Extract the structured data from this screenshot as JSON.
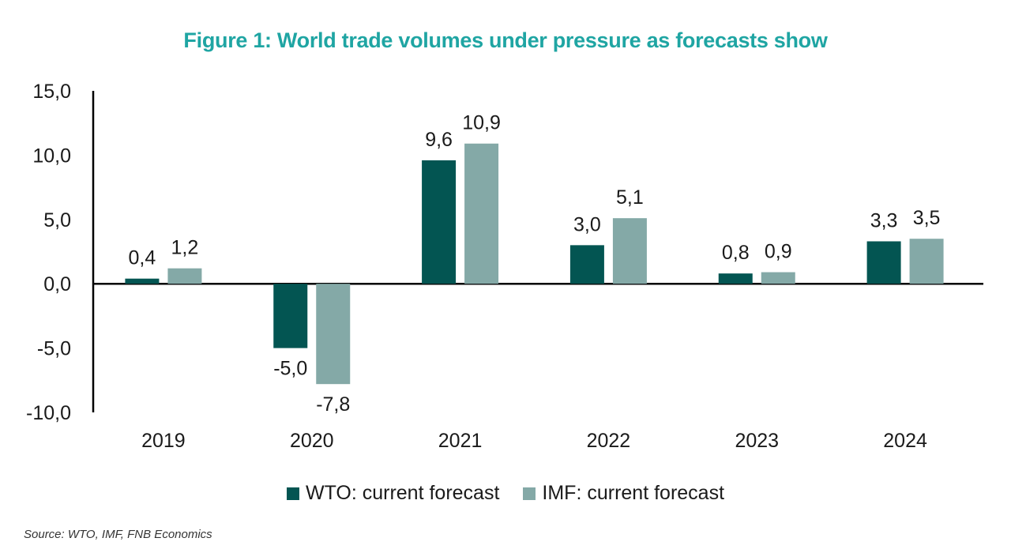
{
  "chart_data": {
    "type": "bar",
    "title": "Figure 1: World trade volumes under pressure as forecasts show",
    "categories": [
      "2019",
      "2020",
      "2021",
      "2022",
      "2023",
      "2024"
    ],
    "series": [
      {
        "name": "WTO: current forecast",
        "color": "#035552",
        "values": [
          0.4,
          -5.0,
          9.6,
          3.0,
          0.8,
          3.3
        ],
        "labels": [
          "0,4",
          "-5,0",
          "9,6",
          "3,0",
          "0,8",
          "3,3"
        ]
      },
      {
        "name": "IMF: current forecast",
        "color": "#84a9a7",
        "values": [
          1.2,
          -7.8,
          10.9,
          5.1,
          0.9,
          3.5
        ],
        "labels": [
          "1,2",
          "-7,8",
          "10,9",
          "5,1",
          "0,9",
          "3,5"
        ]
      }
    ],
    "ylim": [
      -10,
      15
    ],
    "yticks": [
      -10,
      -5,
      0,
      5,
      10,
      15
    ],
    "ytick_labels": [
      "-10,0",
      "-5,0",
      "0,0",
      "5,0",
      "10,0",
      "15,0"
    ],
    "xlabel": "",
    "ylabel": "",
    "grid": false,
    "legend_position": "bottom-center"
  },
  "source": "Source: WTO, IMF, FNB Economics"
}
